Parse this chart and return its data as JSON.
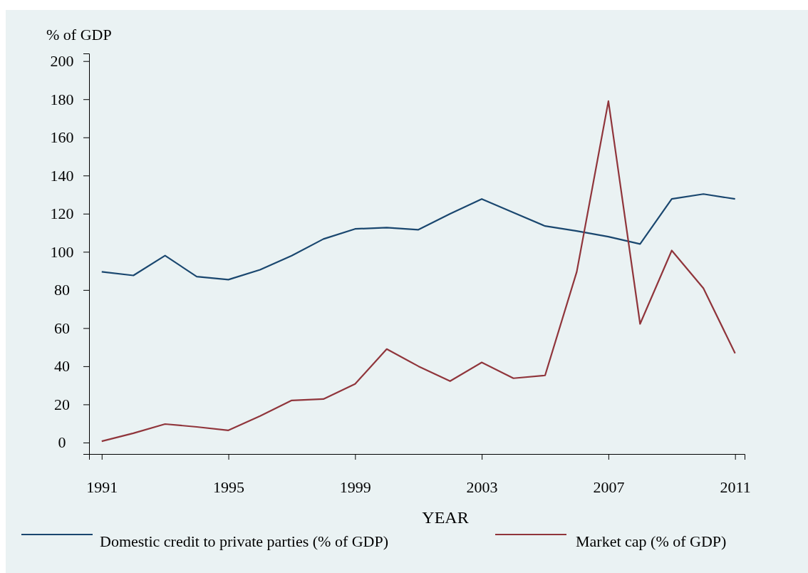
{
  "chart_data": {
    "type": "line",
    "ylabel": "% of GDP",
    "xlabel": "YEAR",
    "x": [
      1991,
      1992,
      1993,
      1994,
      1995,
      1996,
      1997,
      1998,
      1999,
      2000,
      2001,
      2002,
      2003,
      2004,
      2005,
      2006,
      2007,
      2008,
      2009,
      2010,
      2011
    ],
    "xlim": [
      1990.6,
      2011.3
    ],
    "xticks": [
      1991,
      1995,
      1999,
      2003,
      2007,
      2011
    ],
    "ylim": [
      -6,
      204
    ],
    "yticks": [
      0,
      20,
      40,
      60,
      80,
      100,
      120,
      140,
      160,
      180,
      200
    ],
    "grid": false,
    "legend": "bottom",
    "marker": "none",
    "line_style": "solid",
    "series": [
      {
        "name": "Domestic credit to private parties (% of GDP)",
        "color": "#1a476f",
        "values": [
          89.5,
          87.6,
          98,
          87,
          85.4,
          90.6,
          98,
          106.7,
          112,
          112.7,
          111.6,
          119.9,
          127.7,
          120.6,
          113.5,
          110.9,
          107.9,
          104.1,
          127.7,
          130.3,
          127.7
        ]
      },
      {
        "name": "Market cap (% of GDP)",
        "color": "#90353b",
        "values": [
          0.7,
          4.9,
          9.7,
          8.2,
          6.4,
          13.9,
          22.1,
          22.8,
          30.7,
          49,
          40,
          32.2,
          42,
          33.7,
          35.2,
          89.5,
          179,
          62.2,
          100.7,
          80.9,
          46.8
        ]
      }
    ]
  }
}
